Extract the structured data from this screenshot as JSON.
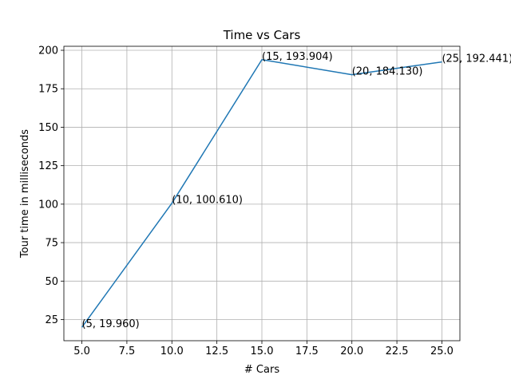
{
  "chart_data": {
    "type": "line",
    "title": "Time vs Cars",
    "xlabel": "# Cars",
    "ylabel": "Tour time in milliseconds",
    "x": [
      5,
      10,
      15,
      20,
      25
    ],
    "series": [
      {
        "values": [
          19.96,
          100.61,
          193.904,
          184.13,
          192.441
        ],
        "color": "#1f77b4"
      }
    ],
    "annotations": [
      "(5, 19.960)",
      "(10, 100.610)",
      "(15, 193.904)",
      "(20, 184.130)",
      "(25, 192.441)"
    ],
    "xlim": [
      4,
      26
    ],
    "ylim": [
      11.26,
      202.6
    ],
    "xticks": [
      5,
      7.5,
      10,
      12.5,
      15,
      17.5,
      20,
      22.5,
      25
    ],
    "xtick_labels": [
      "5.0",
      "7.5",
      "10.0",
      "12.5",
      "15.0",
      "17.5",
      "20.0",
      "22.5",
      "25.0"
    ],
    "yticks": [
      25,
      50,
      75,
      100,
      125,
      150,
      175,
      200
    ],
    "ytick_labels": [
      "25",
      "50",
      "75",
      "100",
      "125",
      "150",
      "175",
      "200"
    ],
    "grid": true,
    "legend": "none"
  }
}
